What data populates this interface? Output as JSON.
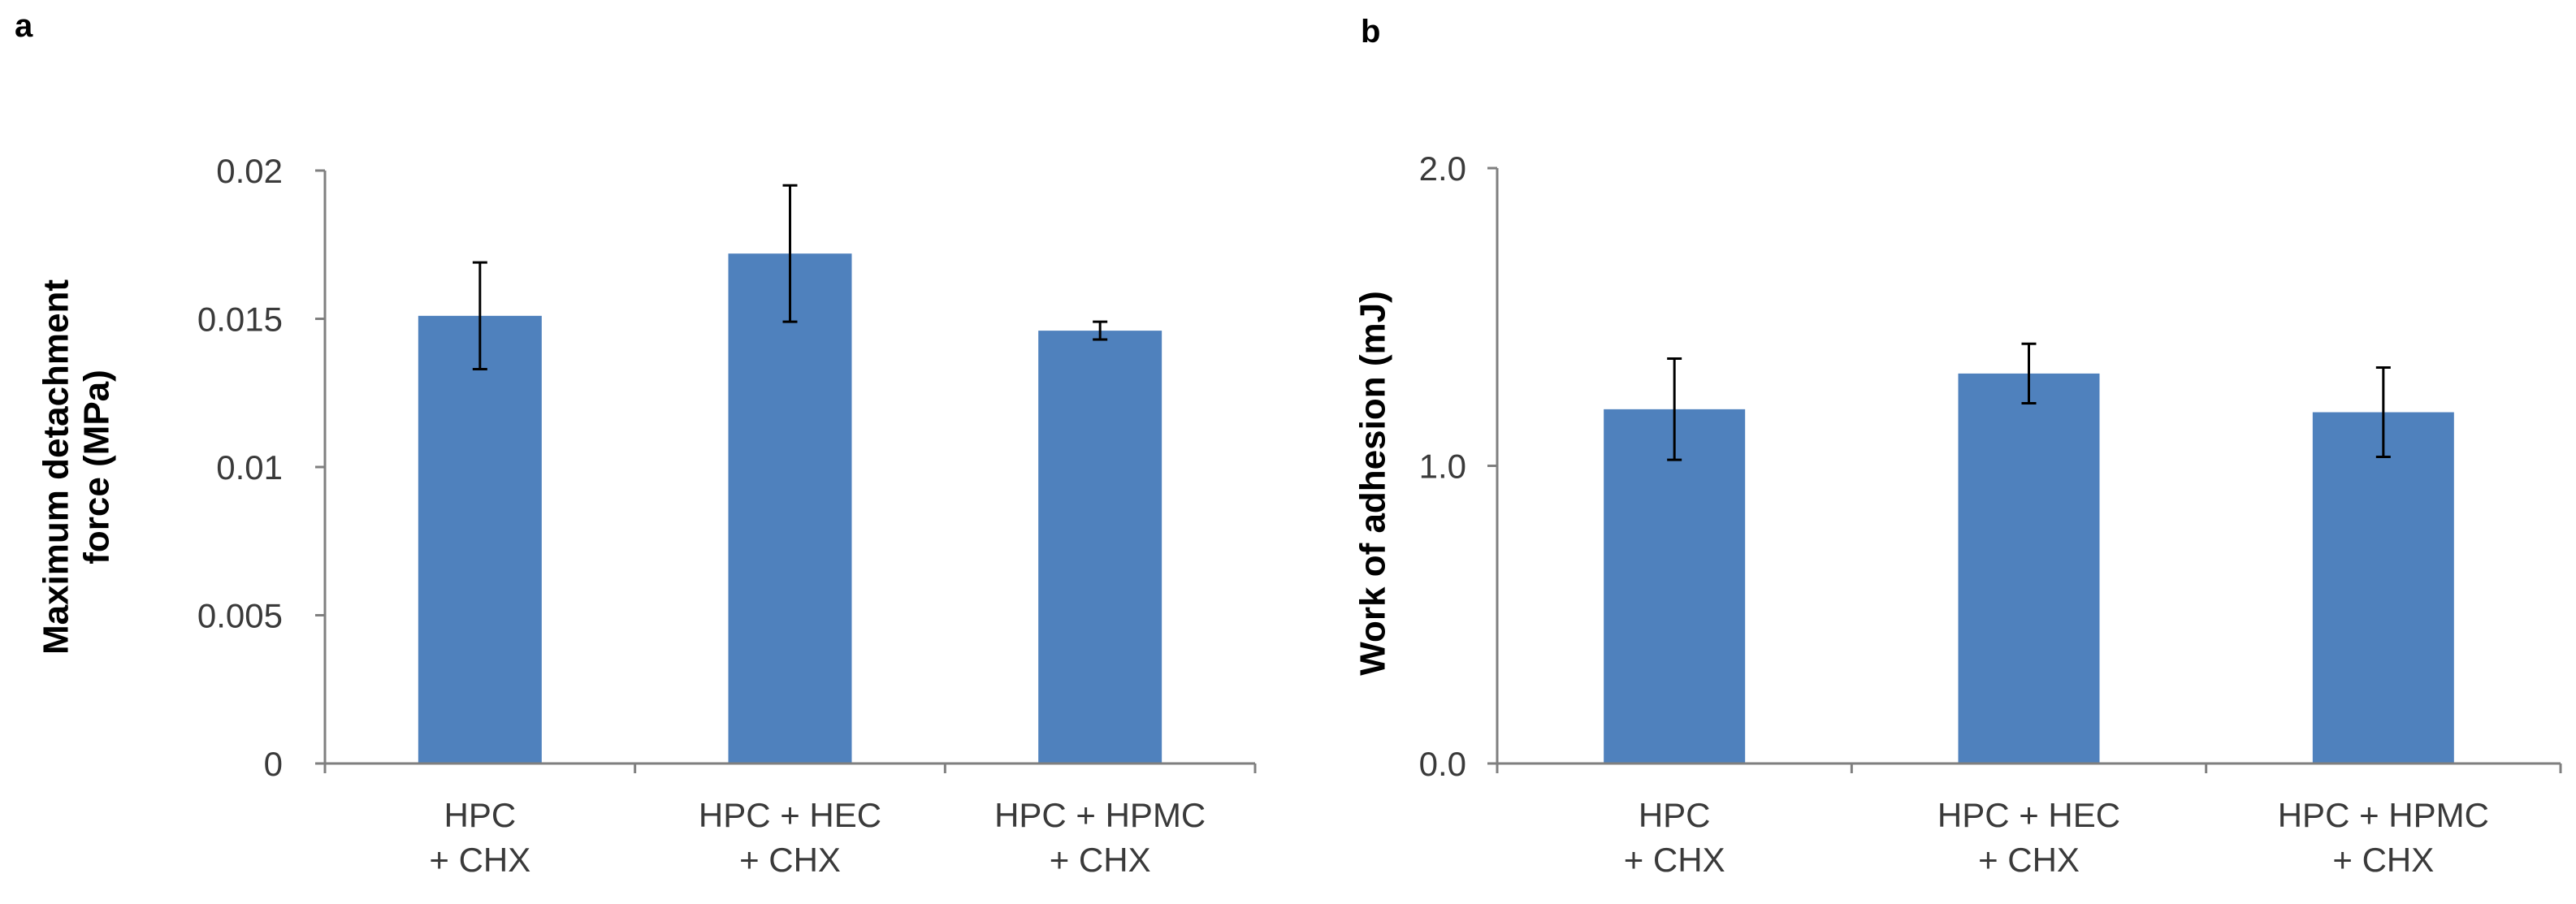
{
  "chart_data": [
    {
      "panel": "a",
      "type": "bar",
      "title": "",
      "xlabel": "",
      "ylabel_lines": [
        "Maximum detachment",
        "force (MPa)"
      ],
      "categories": [
        [
          "HPC",
          "+ CHX"
        ],
        [
          "HPC + HEC",
          "+ CHX"
        ],
        [
          "HPC + HPMC",
          "+ CHX"
        ]
      ],
      "values": [
        0.0151,
        0.0172,
        0.0146
      ],
      "errors": [
        0.0018,
        0.0023,
        0.0003
      ],
      "ylim": [
        0,
        0.02
      ],
      "yticks": [
        0,
        0.005,
        0.01,
        0.015,
        0.02
      ],
      "ytick_labels": [
        "0",
        "0.005",
        "0.01",
        "0.015",
        "0.02"
      ],
      "bar_color": "#4f81bd",
      "grid": false
    },
    {
      "panel": "b",
      "type": "bar",
      "title": "",
      "xlabel": "",
      "ylabel_lines": [
        "Work of adhesion (mJ)"
      ],
      "categories": [
        [
          "HPC",
          "+ CHX"
        ],
        [
          "HPC + HEC",
          "+ CHX"
        ],
        [
          "HPC + HPMC",
          "+ CHX"
        ]
      ],
      "values": [
        1.19,
        1.31,
        1.18
      ],
      "errors": [
        0.17,
        0.1,
        0.15
      ],
      "ylim": [
        0,
        2.0
      ],
      "yticks": [
        0,
        1.0,
        2.0
      ],
      "ytick_labels": [
        "0.0",
        "1.0",
        "2.0"
      ],
      "bar_color": "#4f81bd",
      "grid": false
    }
  ]
}
